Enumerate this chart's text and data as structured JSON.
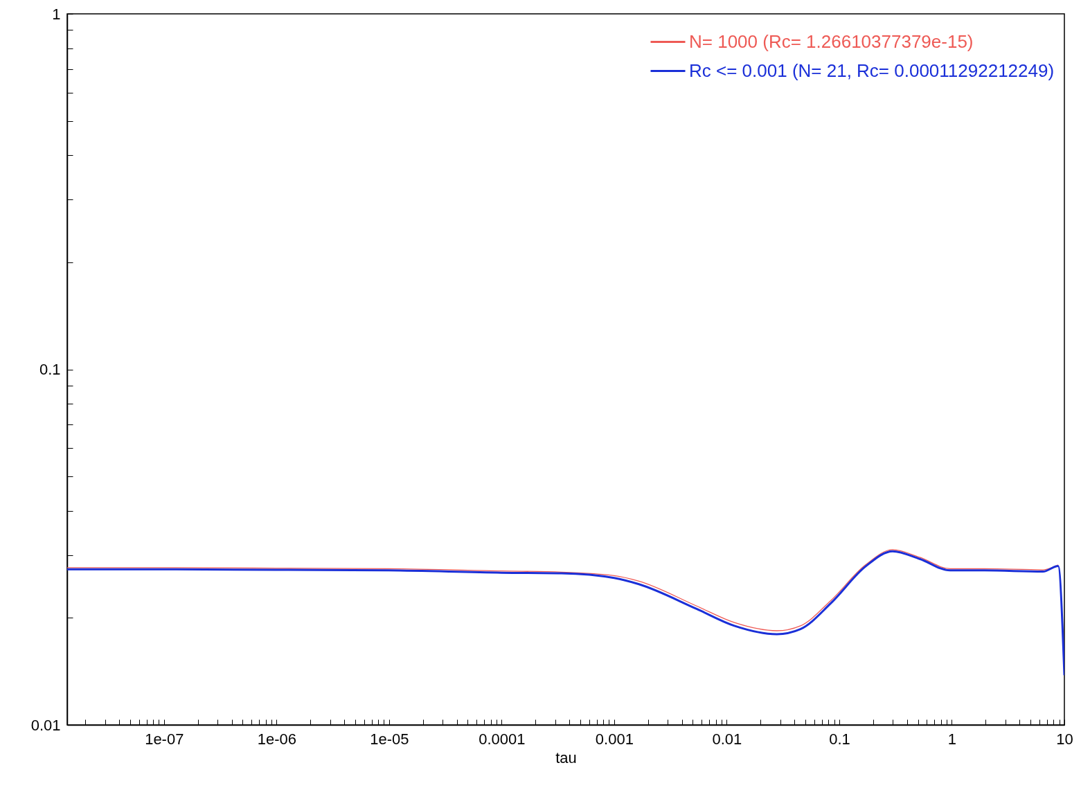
{
  "chart_data": {
    "type": "line",
    "xlabel": "tau",
    "log": "xy",
    "xlim": [
      1.38e-08,
      10
    ],
    "ylim": [
      0.01,
      1
    ],
    "xticks": [
      {
        "value": 2e-08,
        "label": null
      },
      {
        "value": 3e-08,
        "label": null
      },
      {
        "value": 4e-08,
        "label": null
      },
      {
        "value": 5e-08,
        "label": null
      },
      {
        "value": 6e-08,
        "label": null
      },
      {
        "value": 7e-08,
        "label": null
      },
      {
        "value": 8e-08,
        "label": null
      },
      {
        "value": 9e-08,
        "label": null
      },
      {
        "value": 1e-07,
        "label": "1e-07"
      },
      {
        "value": 2e-07,
        "label": null
      },
      {
        "value": 3e-07,
        "label": null
      },
      {
        "value": 4e-07,
        "label": null
      },
      {
        "value": 5e-07,
        "label": null
      },
      {
        "value": 6e-07,
        "label": null
      },
      {
        "value": 7e-07,
        "label": null
      },
      {
        "value": 8e-07,
        "label": null
      },
      {
        "value": 9e-07,
        "label": null
      },
      {
        "value": 1e-06,
        "label": "1e-06"
      },
      {
        "value": 2e-06,
        "label": null
      },
      {
        "value": 3e-06,
        "label": null
      },
      {
        "value": 4e-06,
        "label": null
      },
      {
        "value": 5e-06,
        "label": null
      },
      {
        "value": 6e-06,
        "label": null
      },
      {
        "value": 7e-06,
        "label": null
      },
      {
        "value": 8e-06,
        "label": null
      },
      {
        "value": 9e-06,
        "label": null
      },
      {
        "value": 1e-05,
        "label": "1e-05"
      },
      {
        "value": 2e-05,
        "label": null
      },
      {
        "value": 3e-05,
        "label": null
      },
      {
        "value": 4e-05,
        "label": null
      },
      {
        "value": 5e-05,
        "label": null
      },
      {
        "value": 6e-05,
        "label": null
      },
      {
        "value": 7e-05,
        "label": null
      },
      {
        "value": 8e-05,
        "label": null
      },
      {
        "value": 9e-05,
        "label": null
      },
      0.0001,
      {
        "value": 0.0002,
        "label": null
      },
      {
        "value": 0.0003,
        "label": null
      },
      {
        "value": 0.0004,
        "label": null
      },
      {
        "value": 0.0005,
        "label": null
      },
      {
        "value": 0.0006,
        "label": null
      },
      {
        "value": 0.0007,
        "label": null
      },
      {
        "value": 0.0008,
        "label": null
      },
      {
        "value": 0.0009,
        "label": null
      },
      0.001,
      {
        "value": 0.002,
        "label": null
      },
      {
        "value": 0.003,
        "label": null
      },
      {
        "value": 0.004,
        "label": null
      },
      {
        "value": 0.005,
        "label": null
      },
      {
        "value": 0.006,
        "label": null
      },
      {
        "value": 0.007,
        "label": null
      },
      {
        "value": 0.008,
        "label": null
      },
      {
        "value": 0.009,
        "label": null
      },
      0.01,
      {
        "value": 0.02,
        "label": null
      },
      {
        "value": 0.03,
        "label": null
      },
      {
        "value": 0.04,
        "label": null
      },
      {
        "value": 0.05,
        "label": null
      },
      {
        "value": 0.06,
        "label": null
      },
      {
        "value": 0.07,
        "label": null
      },
      {
        "value": 0.08,
        "label": null
      },
      {
        "value": 0.09,
        "label": null
      },
      0.1,
      {
        "value": 0.2,
        "label": null
      },
      {
        "value": 0.3,
        "label": null
      },
      {
        "value": 0.4,
        "label": null
      },
      {
        "value": 0.5,
        "label": null
      },
      {
        "value": 0.6,
        "label": null
      },
      {
        "value": 0.7,
        "label": null
      },
      {
        "value": 0.8,
        "label": null
      },
      {
        "value": 0.9,
        "label": null
      },
      1,
      {
        "value": 2,
        "label": null
      },
      {
        "value": 3,
        "label": null
      },
      {
        "value": 4,
        "label": null
      },
      {
        "value": 5,
        "label": null
      },
      {
        "value": 6,
        "label": null
      },
      {
        "value": 7,
        "label": null
      },
      {
        "value": 8,
        "label": null
      },
      {
        "value": 9,
        "label": null
      },
      10
    ],
    "yticks": [
      0.01,
      {
        "value": 0.02,
        "label": null
      },
      {
        "value": 0.03,
        "label": null
      },
      {
        "value": 0.04,
        "label": null
      },
      {
        "value": 0.05,
        "label": null
      },
      {
        "value": 0.06,
        "label": null
      },
      {
        "value": 0.07,
        "label": null
      },
      {
        "value": 0.08,
        "label": null
      },
      {
        "value": 0.09,
        "label": null
      },
      0.1,
      {
        "value": 0.2,
        "label": null
      },
      {
        "value": 0.3,
        "label": null
      },
      {
        "value": 0.4,
        "label": null
      },
      {
        "value": 0.5,
        "label": null
      },
      {
        "value": 0.6,
        "label": null
      },
      {
        "value": 0.7,
        "label": null
      },
      {
        "value": 0.8,
        "label": null
      },
      {
        "value": 0.9,
        "label": null
      },
      1
    ],
    "x": [
      1.38e-08,
      1e-07,
      1e-06,
      1e-05,
      0.0001,
      0.00034,
      0.001,
      0.00164,
      0.0054,
      0.0117,
      0.0279,
      0.0452,
      0.0843,
      0.171,
      0.298,
      0.518,
      0.966,
      1.96,
      6.44,
      8.81,
      10
    ],
    "series": [
      {
        "name": "N= 1000 (Rc= 1.26610377379e-15)",
        "color": "#ee5a55",
        "values": [
          0.0277,
          0.0277,
          0.0276,
          0.0275,
          0.0271,
          0.0269,
          0.0263,
          0.0254,
          0.0216,
          0.0194,
          0.0184,
          0.019,
          0.0224,
          0.0282,
          0.0311,
          0.0296,
          0.0275,
          0.0275,
          0.0273,
          0.0282,
          null
        ]
      },
      {
        "name": "Rc <= 0.001 (N= 21, Rc= 0.00011292212249)",
        "color": "#1a2fd8",
        "values": [
          0.0274,
          0.0274,
          0.0273,
          0.0272,
          0.0268,
          0.0267,
          0.0259,
          0.0249,
          0.0212,
          0.019,
          0.018,
          0.0186,
          0.022,
          0.0279,
          0.0308,
          0.0293,
          0.0272,
          0.0272,
          0.027,
          0.028,
          0.0138
        ]
      }
    ],
    "legend": "top right",
    "grid": false
  }
}
